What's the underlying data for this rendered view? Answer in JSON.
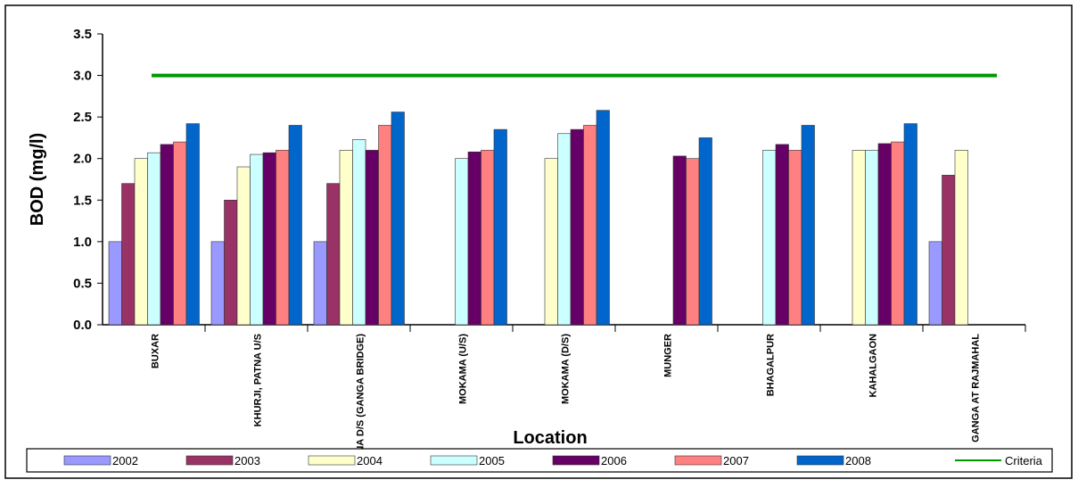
{
  "chart_data": {
    "type": "bar",
    "title": "",
    "xlabel": "Location",
    "ylabel": "BOD (mg/l)",
    "ylim": [
      0,
      3.5
    ],
    "yticks": [
      "0.0",
      "0.5",
      "1.0",
      "1.5",
      "2.0",
      "2.5",
      "3.0",
      "3.5"
    ],
    "grid": false,
    "legend_position": "bottom",
    "categories": [
      "BUXAR",
      "KHURJI, PATNA U/S",
      "PATNA D/S (GANGA BRIDGE)",
      "MOKAMA (U/S)",
      "MOKAMA (D/S)",
      "MUNGER",
      "BHAGALPUR",
      "KAHALGAON",
      "GANGA AT RAJMAHAL"
    ],
    "series": [
      {
        "name": "2002",
        "color": "#9999ff",
        "values": [
          1.0,
          1.0,
          1.0,
          null,
          null,
          null,
          null,
          null,
          1.0
        ]
      },
      {
        "name": "2003",
        "color": "#993366",
        "values": [
          1.7,
          1.5,
          1.7,
          null,
          null,
          null,
          null,
          null,
          1.8
        ]
      },
      {
        "name": "2004",
        "color": "#ffffcc",
        "values": [
          2.0,
          1.9,
          2.1,
          null,
          2.0,
          null,
          null,
          2.1,
          2.1
        ]
      },
      {
        "name": "2005",
        "color": "#ccffff",
        "values": [
          2.07,
          2.05,
          2.23,
          2.0,
          2.3,
          null,
          2.1,
          2.1,
          null
        ]
      },
      {
        "name": "2006",
        "color": "#660066",
        "values": [
          2.17,
          2.07,
          2.1,
          2.08,
          2.35,
          2.03,
          2.17,
          2.18,
          null
        ]
      },
      {
        "name": "2007",
        "color": "#ff8080",
        "values": [
          2.2,
          2.1,
          2.4,
          2.1,
          2.4,
          2.0,
          2.1,
          2.2,
          null
        ]
      },
      {
        "name": "2008",
        "color": "#0066cc",
        "values": [
          2.42,
          2.4,
          2.56,
          2.35,
          2.58,
          2.25,
          2.4,
          2.42,
          null
        ]
      }
    ],
    "reference_line": {
      "name": "Criteria",
      "value": 3.0,
      "color": "#009900"
    }
  }
}
